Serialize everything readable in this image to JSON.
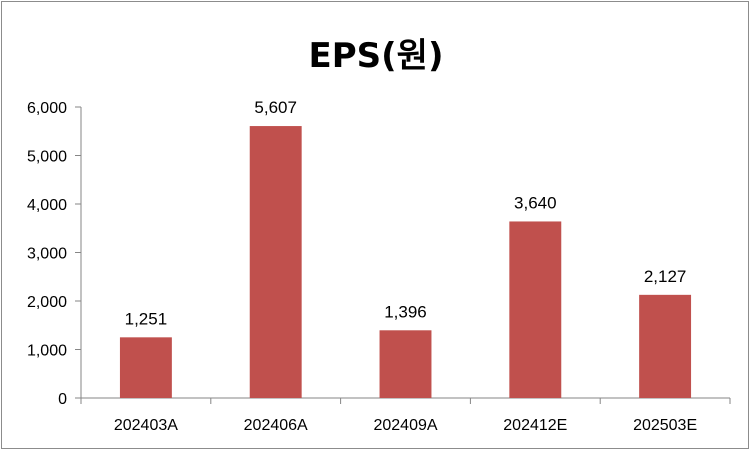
{
  "chart_data": {
    "type": "bar",
    "title": "EPS(원)",
    "categories": [
      "202403A",
      "202406A",
      "202409A",
      "202412E",
      "202503E"
    ],
    "values": [
      1251,
      5607,
      1396,
      3640,
      2127
    ],
    "data_labels": [
      "1,251",
      "5,607",
      "1,396",
      "3,640",
      "2,127"
    ],
    "ylim": [
      0,
      6000
    ],
    "yticks": [
      0,
      1000,
      2000,
      3000,
      4000,
      5000,
      6000
    ],
    "ytick_labels": [
      "0",
      "1,000",
      "2,000",
      "3,000",
      "4,000",
      "5,000",
      "6,000"
    ],
    "grid": false,
    "legend": "none",
    "bar_color": "#c0504d"
  }
}
